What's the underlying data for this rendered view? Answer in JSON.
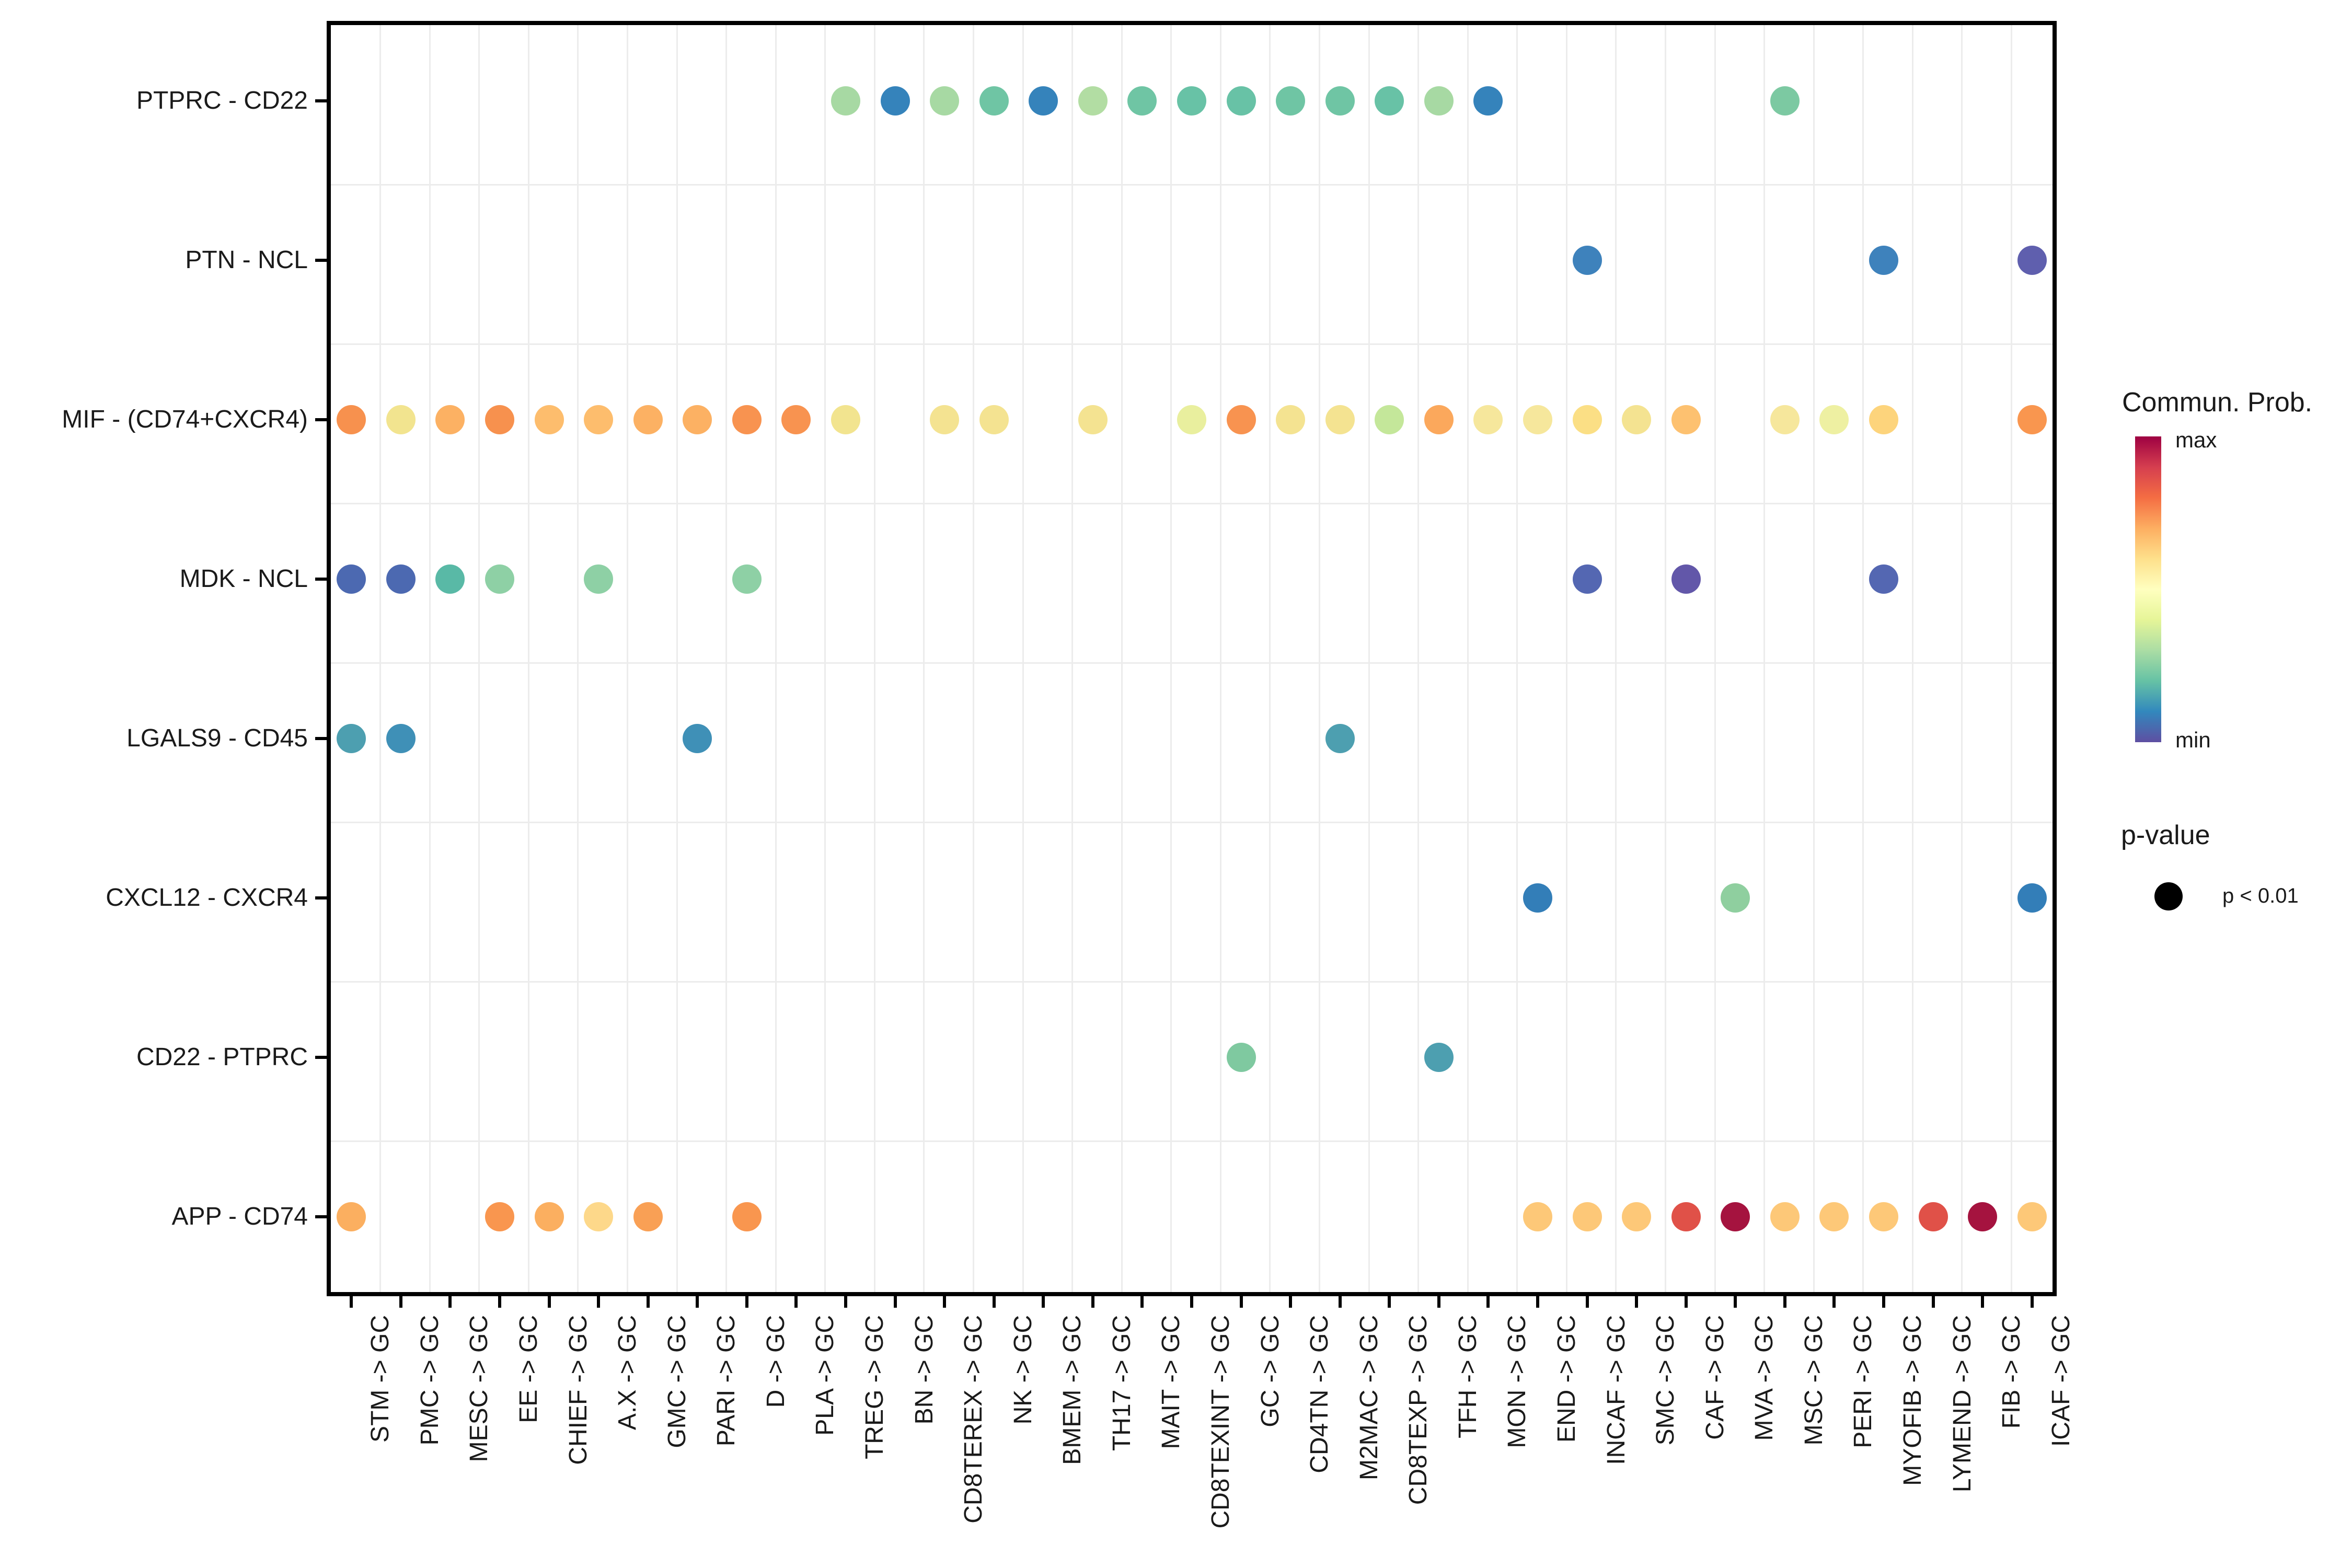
{
  "chart_data": {
    "type": "scatter",
    "subtype": "categorical-dot-plot",
    "x_categories": [
      "STM -> GC",
      "PMC -> GC",
      "MESC -> GC",
      "EE -> GC",
      "CHIEF -> GC",
      "A.X -> GC",
      "GMC -> GC",
      "PARI -> GC",
      "D -> GC",
      "PLA -> GC",
      "TREG -> GC",
      "BN -> GC",
      "CD8TEREX -> GC",
      "NK -> GC",
      "BMEM -> GC",
      "TH17 -> GC",
      "MAIT -> GC",
      "CD8TEXINT -> GC",
      "GC -> GC",
      "CD4TN -> GC",
      "M2MAC -> GC",
      "CD8TEXP -> GC",
      "TFH -> GC",
      "MON -> GC",
      "END -> GC",
      "INCAF -> GC",
      "SMC -> GC",
      "CAF -> GC",
      "MVA -> GC",
      "MSC -> GC",
      "PERI -> GC",
      "MYOFIB -> GC",
      "LYMEND -> GC",
      "FIB -> GC",
      "ICAF -> GC"
    ],
    "y_categories": [
      "PTPRC - CD22",
      "PTN - NCL",
      "MIF - (CD74+CXCR4)",
      "MDK - NCL",
      "LGALS9 - CD45",
      "CXCL12 - CXCR4",
      "CD22 - PTPRC",
      "APP - CD74"
    ],
    "color_encoding": "communication probability (Spectral colormap, min=purple-blue, max=dark red); all shown dots have p < 0.01",
    "points": [
      {
        "y": "PTPRC - CD22",
        "x": "TREG -> GC",
        "color": "#a7d9a3"
      },
      {
        "y": "PTPRC - CD22",
        "x": "BN -> GC",
        "color": "#3583bb"
      },
      {
        "y": "PTPRC - CD22",
        "x": "CD8TEREX -> GC",
        "color": "#a7d9a3"
      },
      {
        "y": "PTPRC - CD22",
        "x": "NK -> GC",
        "color": "#6fc5a4"
      },
      {
        "y": "PTPRC - CD22",
        "x": "BMEM -> GC",
        "color": "#3583bb"
      },
      {
        "y": "PTPRC - CD22",
        "x": "TH17 -> GC",
        "color": "#b2dda3"
      },
      {
        "y": "PTPRC - CD22",
        "x": "MAIT -> GC",
        "color": "#6fc5a4"
      },
      {
        "y": "PTPRC - CD22",
        "x": "CD8TEXINT -> GC",
        "color": "#68c2a6"
      },
      {
        "y": "PTPRC - CD22",
        "x": "GC -> GC",
        "color": "#68c2a6"
      },
      {
        "y": "PTPRC - CD22",
        "x": "CD4TN -> GC",
        "color": "#6fc5a4"
      },
      {
        "y": "PTPRC - CD22",
        "x": "M2MAC -> GC",
        "color": "#6fc5a4"
      },
      {
        "y": "PTPRC - CD22",
        "x": "CD8TEXP -> GC",
        "color": "#68c2a6"
      },
      {
        "y": "PTPRC - CD22",
        "x": "TFH -> GC",
        "color": "#a7d9a3"
      },
      {
        "y": "PTPRC - CD22",
        "x": "MON -> GC",
        "color": "#3583bb"
      },
      {
        "y": "PTPRC - CD22",
        "x": "MSC -> GC",
        "color": "#7cc9a2"
      },
      {
        "y": "PTN - NCL",
        "x": "INCAF -> GC",
        "color": "#3e82bc"
      },
      {
        "y": "PTN - NCL",
        "x": "MYOFIB -> GC",
        "color": "#3e82bc"
      },
      {
        "y": "PTN - NCL",
        "x": "ICAF -> GC",
        "color": "#5f5fae"
      },
      {
        "y": "MIF - (CD74+CXCR4)",
        "x": "STM -> GC",
        "color": "#f7914e"
      },
      {
        "y": "MIF - (CD74+CXCR4)",
        "x": "PMC -> GC",
        "color": "#f2e48f"
      },
      {
        "y": "MIF - (CD74+CXCR4)",
        "x": "MESC -> GC",
        "color": "#fcb163"
      },
      {
        "y": "MIF - (CD74+CXCR4)",
        "x": "EE -> GC",
        "color": "#f7914e"
      },
      {
        "y": "MIF - (CD74+CXCR4)",
        "x": "CHIEF -> GC",
        "color": "#fdbd6d"
      },
      {
        "y": "MIF - (CD74+CXCR4)",
        "x": "A.X -> GC",
        "color": "#fdbd6d"
      },
      {
        "y": "MIF - (CD74+CXCR4)",
        "x": "GMC -> GC",
        "color": "#fcb163"
      },
      {
        "y": "MIF - (CD74+CXCR4)",
        "x": "PARI -> GC",
        "color": "#fcb163"
      },
      {
        "y": "MIF - (CD74+CXCR4)",
        "x": "D -> GC",
        "color": "#f89350"
      },
      {
        "y": "MIF - (CD74+CXCR4)",
        "x": "PLA -> GC",
        "color": "#f89350"
      },
      {
        "y": "MIF - (CD74+CXCR4)",
        "x": "TREG -> GC",
        "color": "#f2e48f"
      },
      {
        "y": "MIF - (CD74+CXCR4)",
        "x": "CD8TEREX -> GC",
        "color": "#f4e391"
      },
      {
        "y": "MIF - (CD74+CXCR4)",
        "x": "NK -> GC",
        "color": "#f4e391"
      },
      {
        "y": "MIF - (CD74+CXCR4)",
        "x": "TH17 -> GC",
        "color": "#f4e391"
      },
      {
        "y": "MIF - (CD74+CXCR4)",
        "x": "CD8TEXINT -> GC",
        "color": "#e9ef9e"
      },
      {
        "y": "MIF - (CD74+CXCR4)",
        "x": "GC -> GC",
        "color": "#f89350"
      },
      {
        "y": "MIF - (CD74+CXCR4)",
        "x": "CD4TN -> GC",
        "color": "#f4e391"
      },
      {
        "y": "MIF - (CD74+CXCR4)",
        "x": "M2MAC -> GC",
        "color": "#f4e391"
      },
      {
        "y": "MIF - (CD74+CXCR4)",
        "x": "CD8TEXP -> GC",
        "color": "#c4e79a"
      },
      {
        "y": "MIF - (CD74+CXCR4)",
        "x": "TFH -> GC",
        "color": "#fba85c"
      },
      {
        "y": "MIF - (CD74+CXCR4)",
        "x": "MON -> GC",
        "color": "#f6e79c"
      },
      {
        "y": "MIF - (CD74+CXCR4)",
        "x": "END -> GC",
        "color": "#f6e79c"
      },
      {
        "y": "MIF - (CD74+CXCR4)",
        "x": "INCAF -> GC",
        "color": "#fbdf85"
      },
      {
        "y": "MIF - (CD74+CXCR4)",
        "x": "SMC -> GC",
        "color": "#f4e391"
      },
      {
        "y": "MIF - (CD74+CXCR4)",
        "x": "CAF -> GC",
        "color": "#fdc170"
      },
      {
        "y": "MIF - (CD74+CXCR4)",
        "x": "MSC -> GC",
        "color": "#f6e79c"
      },
      {
        "y": "MIF - (CD74+CXCR4)",
        "x": "PERI -> GC",
        "color": "#eef0a2"
      },
      {
        "y": "MIF - (CD74+CXCR4)",
        "x": "MYOFIB -> GC",
        "color": "#fdd47c"
      },
      {
        "y": "MIF - (CD74+CXCR4)",
        "x": "ICAF -> GC",
        "color": "#f9964f"
      },
      {
        "y": "MDK - NCL",
        "x": "STM -> GC",
        "color": "#4c69b1"
      },
      {
        "y": "MDK - NCL",
        "x": "PMC -> GC",
        "color": "#4c69b1"
      },
      {
        "y": "MDK - NCL",
        "x": "MESC -> GC",
        "color": "#59b9a6"
      },
      {
        "y": "MDK - NCL",
        "x": "EE -> GC",
        "color": "#8ed0a5"
      },
      {
        "y": "MDK - NCL",
        "x": "A.X -> GC",
        "color": "#8ed0a5"
      },
      {
        "y": "MDK - NCL",
        "x": "D -> GC",
        "color": "#8ed0a5"
      },
      {
        "y": "MDK - NCL",
        "x": "INCAF -> GC",
        "color": "#5467b2"
      },
      {
        "y": "MDK - NCL",
        "x": "CAF -> GC",
        "color": "#6257a9"
      },
      {
        "y": "MDK - NCL",
        "x": "MYOFIB -> GC",
        "color": "#5467b2"
      },
      {
        "y": "LGALS9 - CD45",
        "x": "STM -> GC",
        "color": "#4d9fb0"
      },
      {
        "y": "LGALS9 - CD45",
        "x": "PMC -> GC",
        "color": "#3f90b7"
      },
      {
        "y": "LGALS9 - CD45",
        "x": "PARI -> GC",
        "color": "#3f90b7"
      },
      {
        "y": "LGALS9 - CD45",
        "x": "M2MAC -> GC",
        "color": "#4d9fb0"
      },
      {
        "y": "CXCL12 - CXCR4",
        "x": "END -> GC",
        "color": "#337eb8"
      },
      {
        "y": "CXCL12 - CXCR4",
        "x": "MVA -> GC",
        "color": "#8fcf9f"
      },
      {
        "y": "CXCL12 - CXCR4",
        "x": "ICAF -> GC",
        "color": "#337eb8"
      },
      {
        "y": "CD22 - PTPRC",
        "x": "GC -> GC",
        "color": "#7fc9a0"
      },
      {
        "y": "CD22 - PTPRC",
        "x": "TFH -> GC",
        "color": "#4d9fb0"
      },
      {
        "y": "APP - CD74",
        "x": "STM -> GC",
        "color": "#fbaf60"
      },
      {
        "y": "APP - CD74",
        "x": "EE -> GC",
        "color": "#f9964f"
      },
      {
        "y": "APP - CD74",
        "x": "CHIEF -> GC",
        "color": "#fbaf60"
      },
      {
        "y": "APP - CD74",
        "x": "A.X -> GC",
        "color": "#fdd88a"
      },
      {
        "y": "APP - CD74",
        "x": "GMC -> GC",
        "color": "#f9a055"
      },
      {
        "y": "APP - CD74",
        "x": "D -> GC",
        "color": "#f9964f"
      },
      {
        "y": "APP - CD74",
        "x": "END -> GC",
        "color": "#fdc878"
      },
      {
        "y": "APP - CD74",
        "x": "INCAF -> GC",
        "color": "#fdc878"
      },
      {
        "y": "APP - CD74",
        "x": "SMC -> GC",
        "color": "#fdc878"
      },
      {
        "y": "APP - CD74",
        "x": "CAF -> GC",
        "color": "#e05148"
      },
      {
        "y": "APP - CD74",
        "x": "MVA -> GC",
        "color": "#a5133f"
      },
      {
        "y": "APP - CD74",
        "x": "MSC -> GC",
        "color": "#fdc878"
      },
      {
        "y": "APP - CD74",
        "x": "PERI -> GC",
        "color": "#fdc878"
      },
      {
        "y": "APP - CD74",
        "x": "MYOFIB -> GC",
        "color": "#fdc878"
      },
      {
        "y": "APP - CD74",
        "x": "LYMEND -> GC",
        "color": "#e05148"
      },
      {
        "y": "APP - CD74",
        "x": "FIB -> GC",
        "color": "#a5133f"
      },
      {
        "y": "APP - CD74",
        "x": "ICAF -> GC",
        "color": "#fdc878"
      }
    ],
    "legend": {
      "colorbar": {
        "title": "Commun. Prob.",
        "max_label": "max",
        "min_label": "min",
        "gradient_top_to_bottom": [
          "#9e0142",
          "#d53e4f",
          "#f46d43",
          "#fdae61",
          "#fee08b",
          "#ffffbf",
          "#e6f598",
          "#abdda4",
          "#66c2a5",
          "#3288bd",
          "#5e4fa2"
        ]
      },
      "pvalue": {
        "title": "p-value",
        "items": [
          {
            "label": "p < 0.01"
          }
        ]
      },
      "position": "right"
    },
    "grid": "minor gridlines between categories",
    "styles": {
      "background": "#ffffff",
      "panel_border": "#000000",
      "gridline": "#ececec",
      "text": "#1a1a1a"
    }
  }
}
